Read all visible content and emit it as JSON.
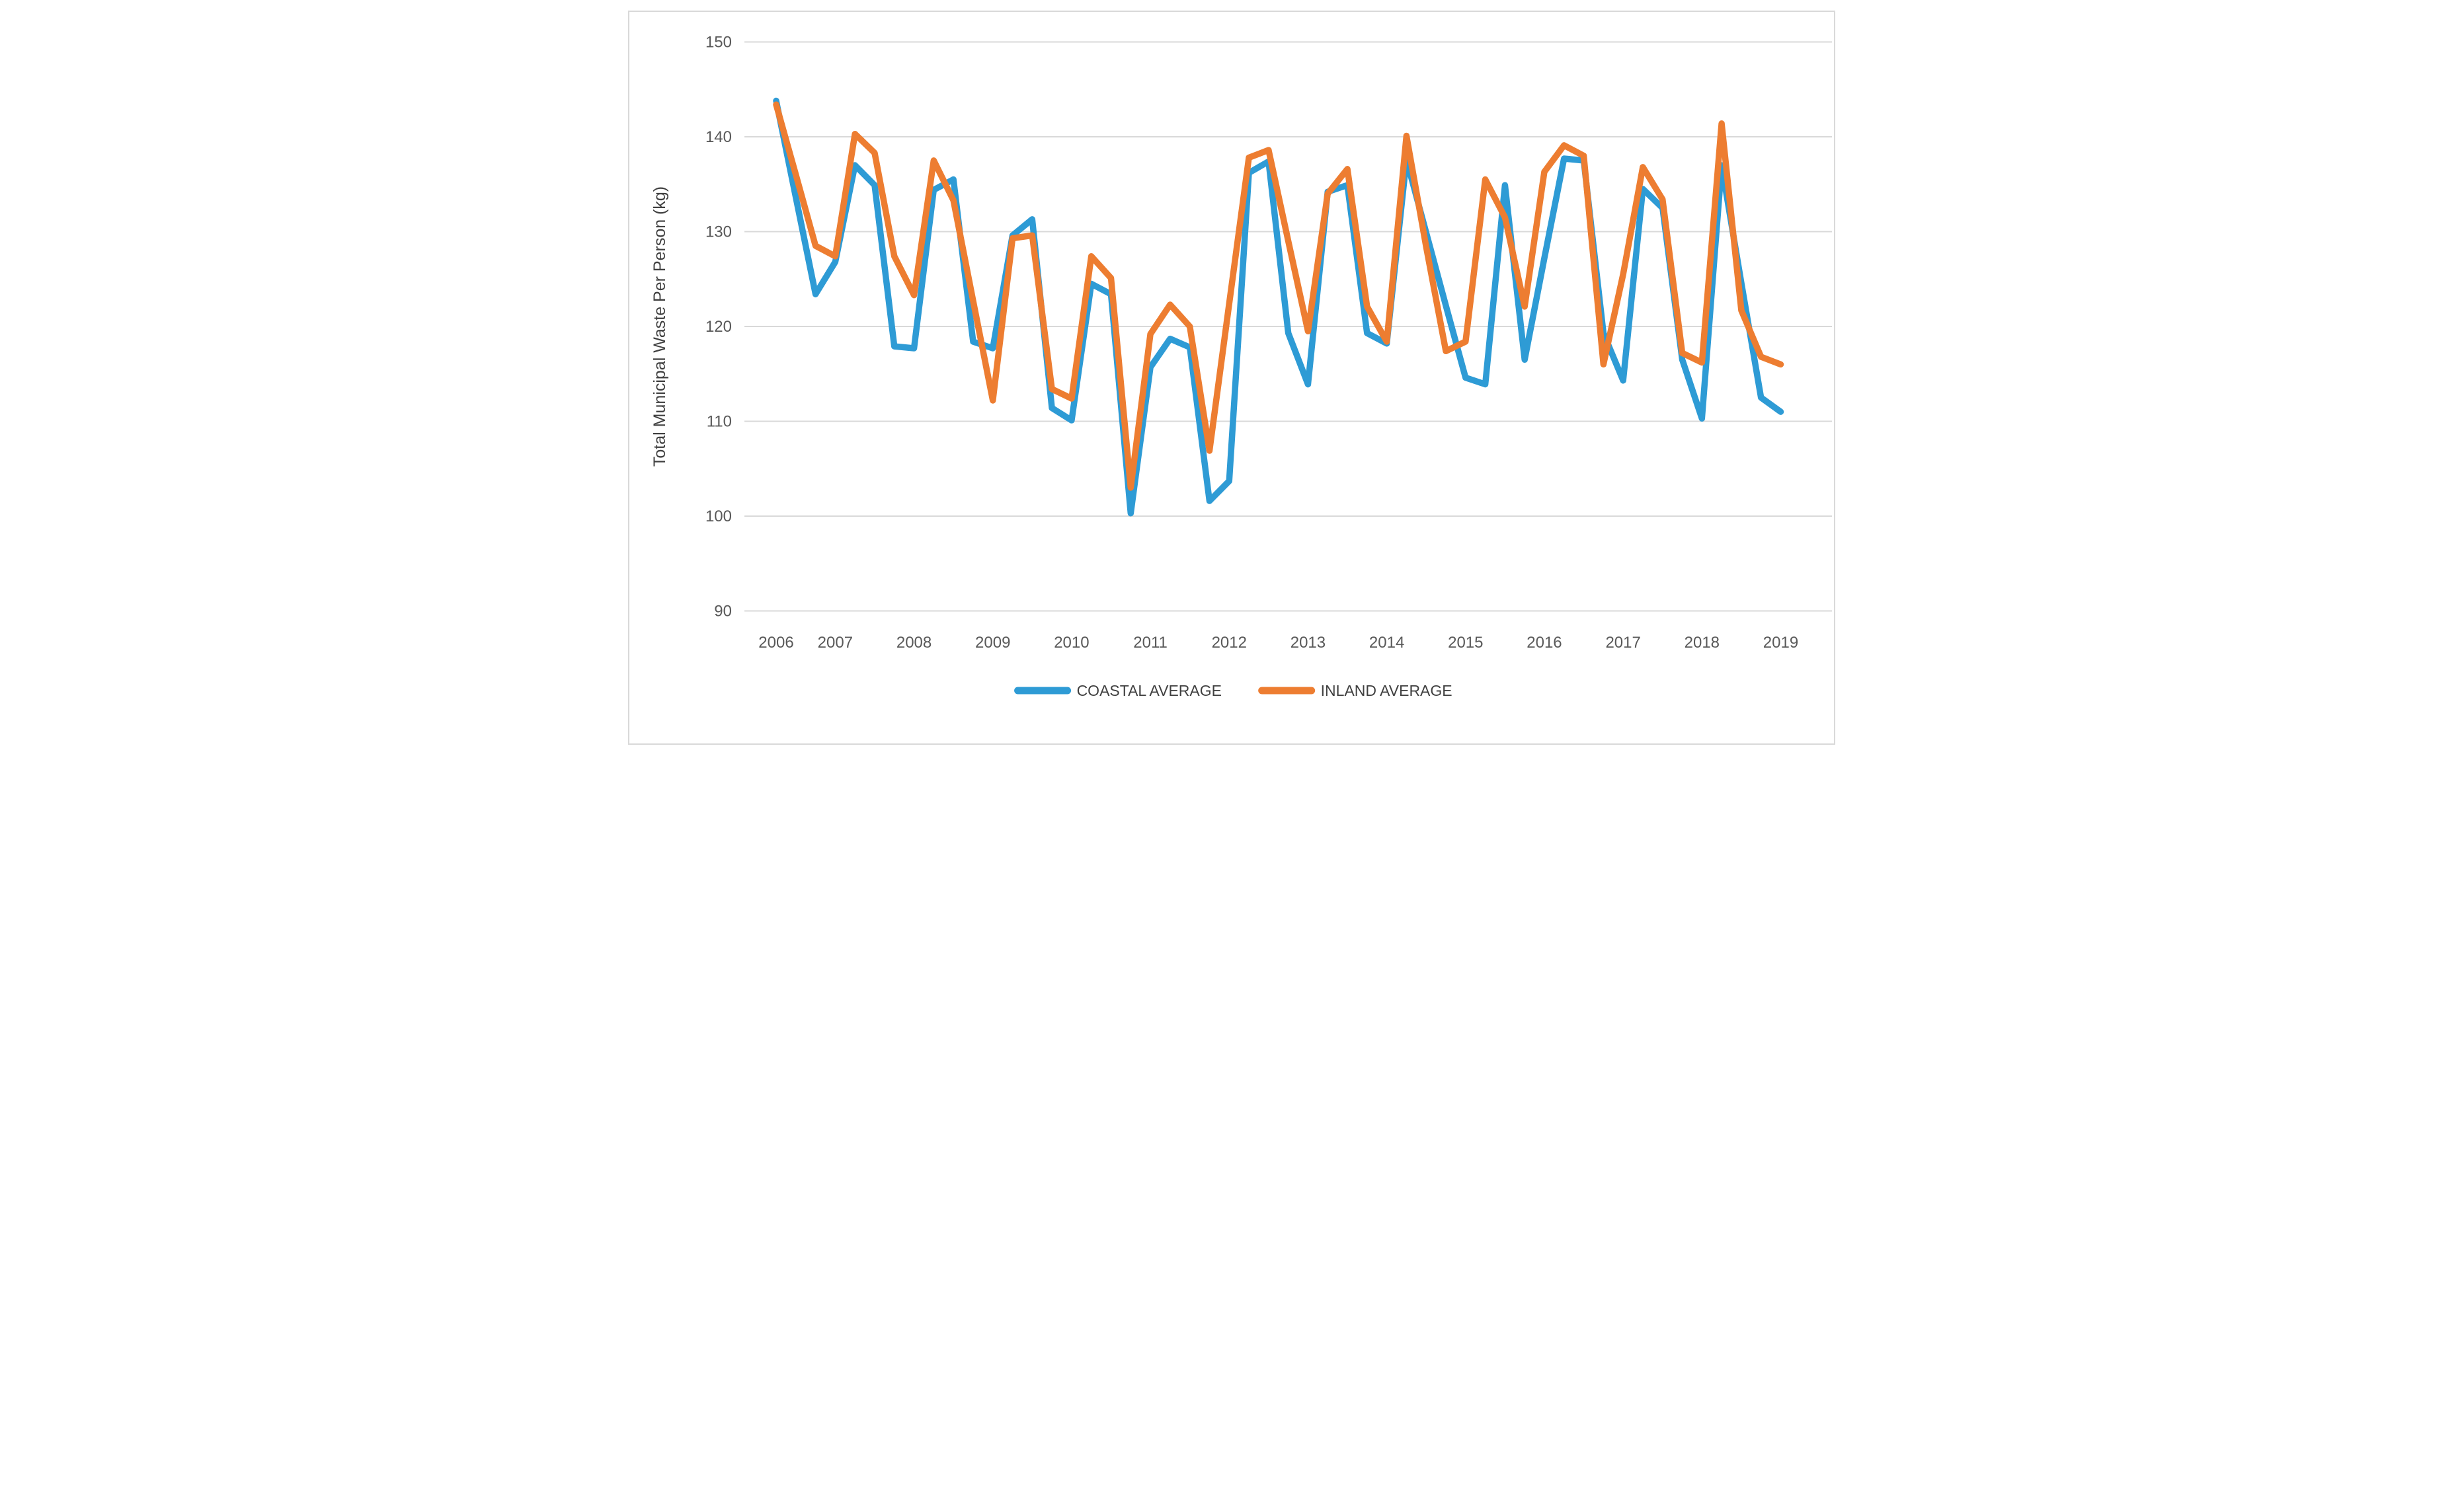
{
  "chart_data": {
    "type": "line",
    "title": "",
    "xlabel": "",
    "ylabel": "Total Municipal Waste Per Person (kg)",
    "ylim": [
      90,
      150
    ],
    "yticks": [
      150,
      140,
      130,
      120,
      110,
      100,
      90
    ],
    "grid": true,
    "legend_position": "bottom-center",
    "x_periods": [
      "2006-Q2",
      "2006-Q3",
      "2006-Q4",
      "2007-Q1",
      "2007-Q2",
      "2007-Q3",
      "2007-Q4",
      "2008-Q1",
      "2008-Q2",
      "2008-Q3",
      "2008-Q4",
      "2009-Q1",
      "2009-Q2",
      "2009-Q3",
      "2009-Q4",
      "2010-Q1",
      "2010-Q2",
      "2010-Q3",
      "2010-Q4",
      "2011-Q1",
      "2011-Q2",
      "2011-Q3",
      "2011-Q4",
      "2012-Q1",
      "2012-Q2",
      "2012-Q3",
      "2012-Q4",
      "2013-Q1",
      "2013-Q2",
      "2013-Q3",
      "2013-Q4",
      "2014-Q1",
      "2014-Q2",
      "2014-Q3",
      "2014-Q4",
      "2015-Q1",
      "2015-Q2",
      "2015-Q3",
      "2015-Q4",
      "2016-Q1",
      "2016-Q2",
      "2016-Q3",
      "2016-Q4",
      "2017-Q1",
      "2017-Q2",
      "2017-Q3",
      "2017-Q4",
      "2018-Q1",
      "2018-Q2",
      "2018-Q3",
      "2018-Q4",
      "2019-Q1"
    ],
    "year_ticks": [
      {
        "label": "2006",
        "index": 0
      },
      {
        "label": "2007",
        "index": 3
      },
      {
        "label": "2008",
        "index": 7
      },
      {
        "label": "2009",
        "index": 11
      },
      {
        "label": "2010",
        "index": 15
      },
      {
        "label": "2011",
        "index": 19
      },
      {
        "label": "2012",
        "index": 23
      },
      {
        "label": "2013",
        "index": 27
      },
      {
        "label": "2014",
        "index": 31
      },
      {
        "label": "2015",
        "index": 35
      },
      {
        "label": "2016",
        "index": 39
      },
      {
        "label": "2017",
        "index": 43
      },
      {
        "label": "2018",
        "index": 47
      },
      {
        "label": "2019",
        "index": 51
      }
    ],
    "series": [
      {
        "name": "COASTAL AVERAGE",
        "color": "#2E9BD5",
        "values": [
          143.8,
          133.6,
          123.4,
          126.8,
          137.0,
          134.9,
          117.9,
          117.7,
          134.4,
          135.5,
          118.4,
          117.7,
          129.6,
          131.3,
          111.4,
          110.1,
          124.5,
          123.4,
          100.3,
          115.7,
          118.7,
          117.8,
          101.6,
          103.7,
          136.2,
          137.4,
          119.3,
          113.9,
          134.2,
          134.9,
          119.3,
          118.2,
          137.6,
          129.9,
          122.2,
          114.6,
          113.9,
          134.9,
          116.5,
          127.2,
          137.7,
          137.5,
          119.3,
          114.3,
          134.5,
          132.5,
          116.5,
          110.3,
          137.0,
          124.6,
          112.5,
          111.0
        ]
      },
      {
        "name": "INLAND AVERAGE",
        "color": "#ED7D31",
        "values": [
          143.4,
          136.0,
          128.5,
          127.4,
          140.3,
          138.3,
          127.4,
          123.3,
          137.5,
          133.3,
          122.7,
          112.2,
          129.3,
          129.6,
          113.4,
          112.4,
          127.4,
          125.1,
          103.0,
          119.2,
          122.3,
          120.0,
          106.9,
          122.4,
          137.8,
          138.6,
          129.0,
          119.5,
          134.0,
          136.6,
          122.1,
          118.4,
          140.1,
          128.4,
          117.4,
          118.4,
          135.5,
          131.5,
          122.1,
          136.3,
          139.1,
          138.0,
          116.0,
          125.5,
          136.8,
          133.4,
          117.2,
          116.2,
          141.4,
          121.7,
          116.8,
          116.0
        ]
      }
    ]
  },
  "legend": {
    "items": [
      "COASTAL AVERAGE",
      "INLAND AVERAGE"
    ]
  },
  "style": {
    "gridline_color": "#D9D9D9",
    "border_color": "#D9D9D9",
    "tick_label_color": "#595959",
    "axis_title_color": "#404040",
    "legend_text_color": "#404040",
    "background": "#FFFFFF"
  }
}
